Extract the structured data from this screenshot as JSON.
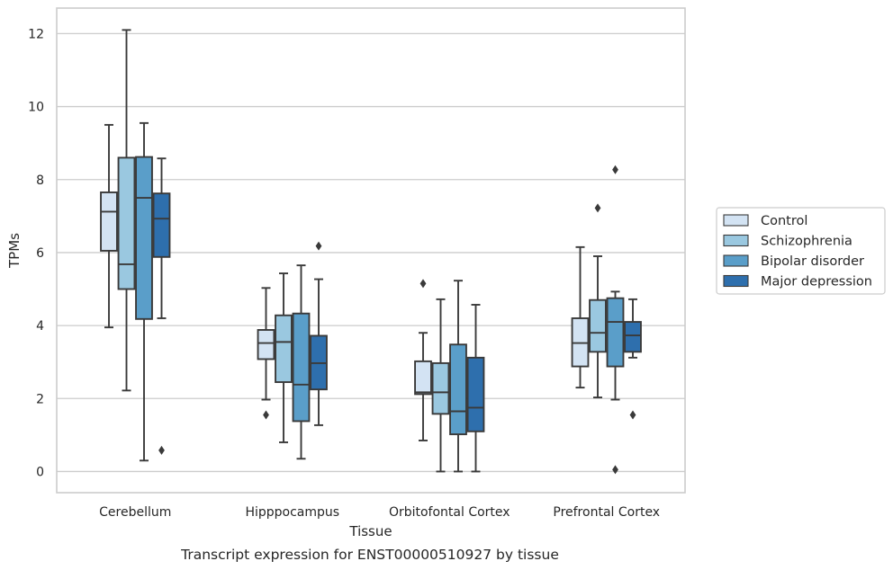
{
  "chart_data": {
    "type": "box",
    "title": "",
    "caption": "Transcript expression for ENST00000510927 by tissue",
    "xlabel": "Tissue",
    "ylabel": "TPMs",
    "ylim": [
      -0.58,
      12.7
    ],
    "yticks": [
      0,
      2,
      4,
      6,
      8,
      10,
      12
    ],
    "grid": "horizontal",
    "legend_position": "right",
    "categories": [
      "Cerebellum",
      "Hipppocampus",
      "Orbitofontal Cortex",
      "Prefrontal Cortex"
    ],
    "series": [
      {
        "name": "Control",
        "color": "#d3e3f3",
        "boxes": [
          {
            "whislo": 3.95,
            "q1": 6.05,
            "med": 7.12,
            "q3": 7.65,
            "whishi": 9.5,
            "fliers": []
          },
          {
            "whislo": 1.97,
            "q1": 3.08,
            "med": 3.52,
            "q3": 3.88,
            "whishi": 5.03,
            "fliers": [
              1.55
            ]
          },
          {
            "whislo": 0.85,
            "q1": 2.12,
            "med": 2.17,
            "q3": 3.02,
            "whishi": 3.8,
            "fliers": [
              5.15
            ]
          },
          {
            "whislo": 2.3,
            "q1": 2.88,
            "med": 3.52,
            "q3": 4.2,
            "whishi": 6.15,
            "fliers": []
          }
        ]
      },
      {
        "name": "Schizophrenia",
        "color": "#9ac8e0",
        "boxes": [
          {
            "whislo": 2.22,
            "q1": 5.0,
            "med": 5.68,
            "q3": 8.6,
            "whishi": 12.1,
            "fliers": []
          },
          {
            "whislo": 0.8,
            "q1": 2.45,
            "med": 3.55,
            "q3": 4.28,
            "whishi": 5.43,
            "fliers": []
          },
          {
            "whislo": 0.0,
            "q1": 1.58,
            "med": 2.17,
            "q3": 2.97,
            "whishi": 4.72,
            "fliers": []
          },
          {
            "whislo": 2.03,
            "q1": 3.28,
            "med": 3.8,
            "q3": 4.7,
            "whishi": 5.9,
            "fliers": [
              7.22
            ]
          }
        ]
      },
      {
        "name": "Bipolar disorder",
        "color": "#5a9ec9",
        "boxes": [
          {
            "whislo": 0.3,
            "q1": 4.18,
            "med": 7.5,
            "q3": 8.62,
            "whishi": 9.55,
            "fliers": []
          },
          {
            "whislo": 0.35,
            "q1": 1.38,
            "med": 2.38,
            "q3": 4.33,
            "whishi": 5.65,
            "fliers": []
          },
          {
            "whislo": 0.0,
            "q1": 1.02,
            "med": 1.65,
            "q3": 3.48,
            "whishi": 5.23,
            "fliers": []
          },
          {
            "whislo": 1.97,
            "q1": 2.88,
            "med": 4.1,
            "q3": 4.75,
            "whishi": 4.93,
            "fliers": [
              8.27,
              0.05
            ]
          }
        ]
      },
      {
        "name": "Major depression",
        "color": "#2e6fad",
        "boxes": [
          {
            "whislo": 4.2,
            "q1": 5.88,
            "med": 6.93,
            "q3": 7.62,
            "whishi": 8.58,
            "fliers": [
              0.58
            ]
          },
          {
            "whislo": 1.27,
            "q1": 2.25,
            "med": 2.97,
            "q3": 3.72,
            "whishi": 5.27,
            "fliers": [
              6.18
            ]
          },
          {
            "whislo": 0.0,
            "q1": 1.1,
            "med": 1.75,
            "q3": 3.12,
            "whishi": 4.57,
            "fliers": []
          },
          {
            "whislo": 3.12,
            "q1": 3.28,
            "med": 3.73,
            "q3": 4.1,
            "whishi": 4.72,
            "fliers": [
              1.55
            ]
          }
        ]
      }
    ]
  }
}
